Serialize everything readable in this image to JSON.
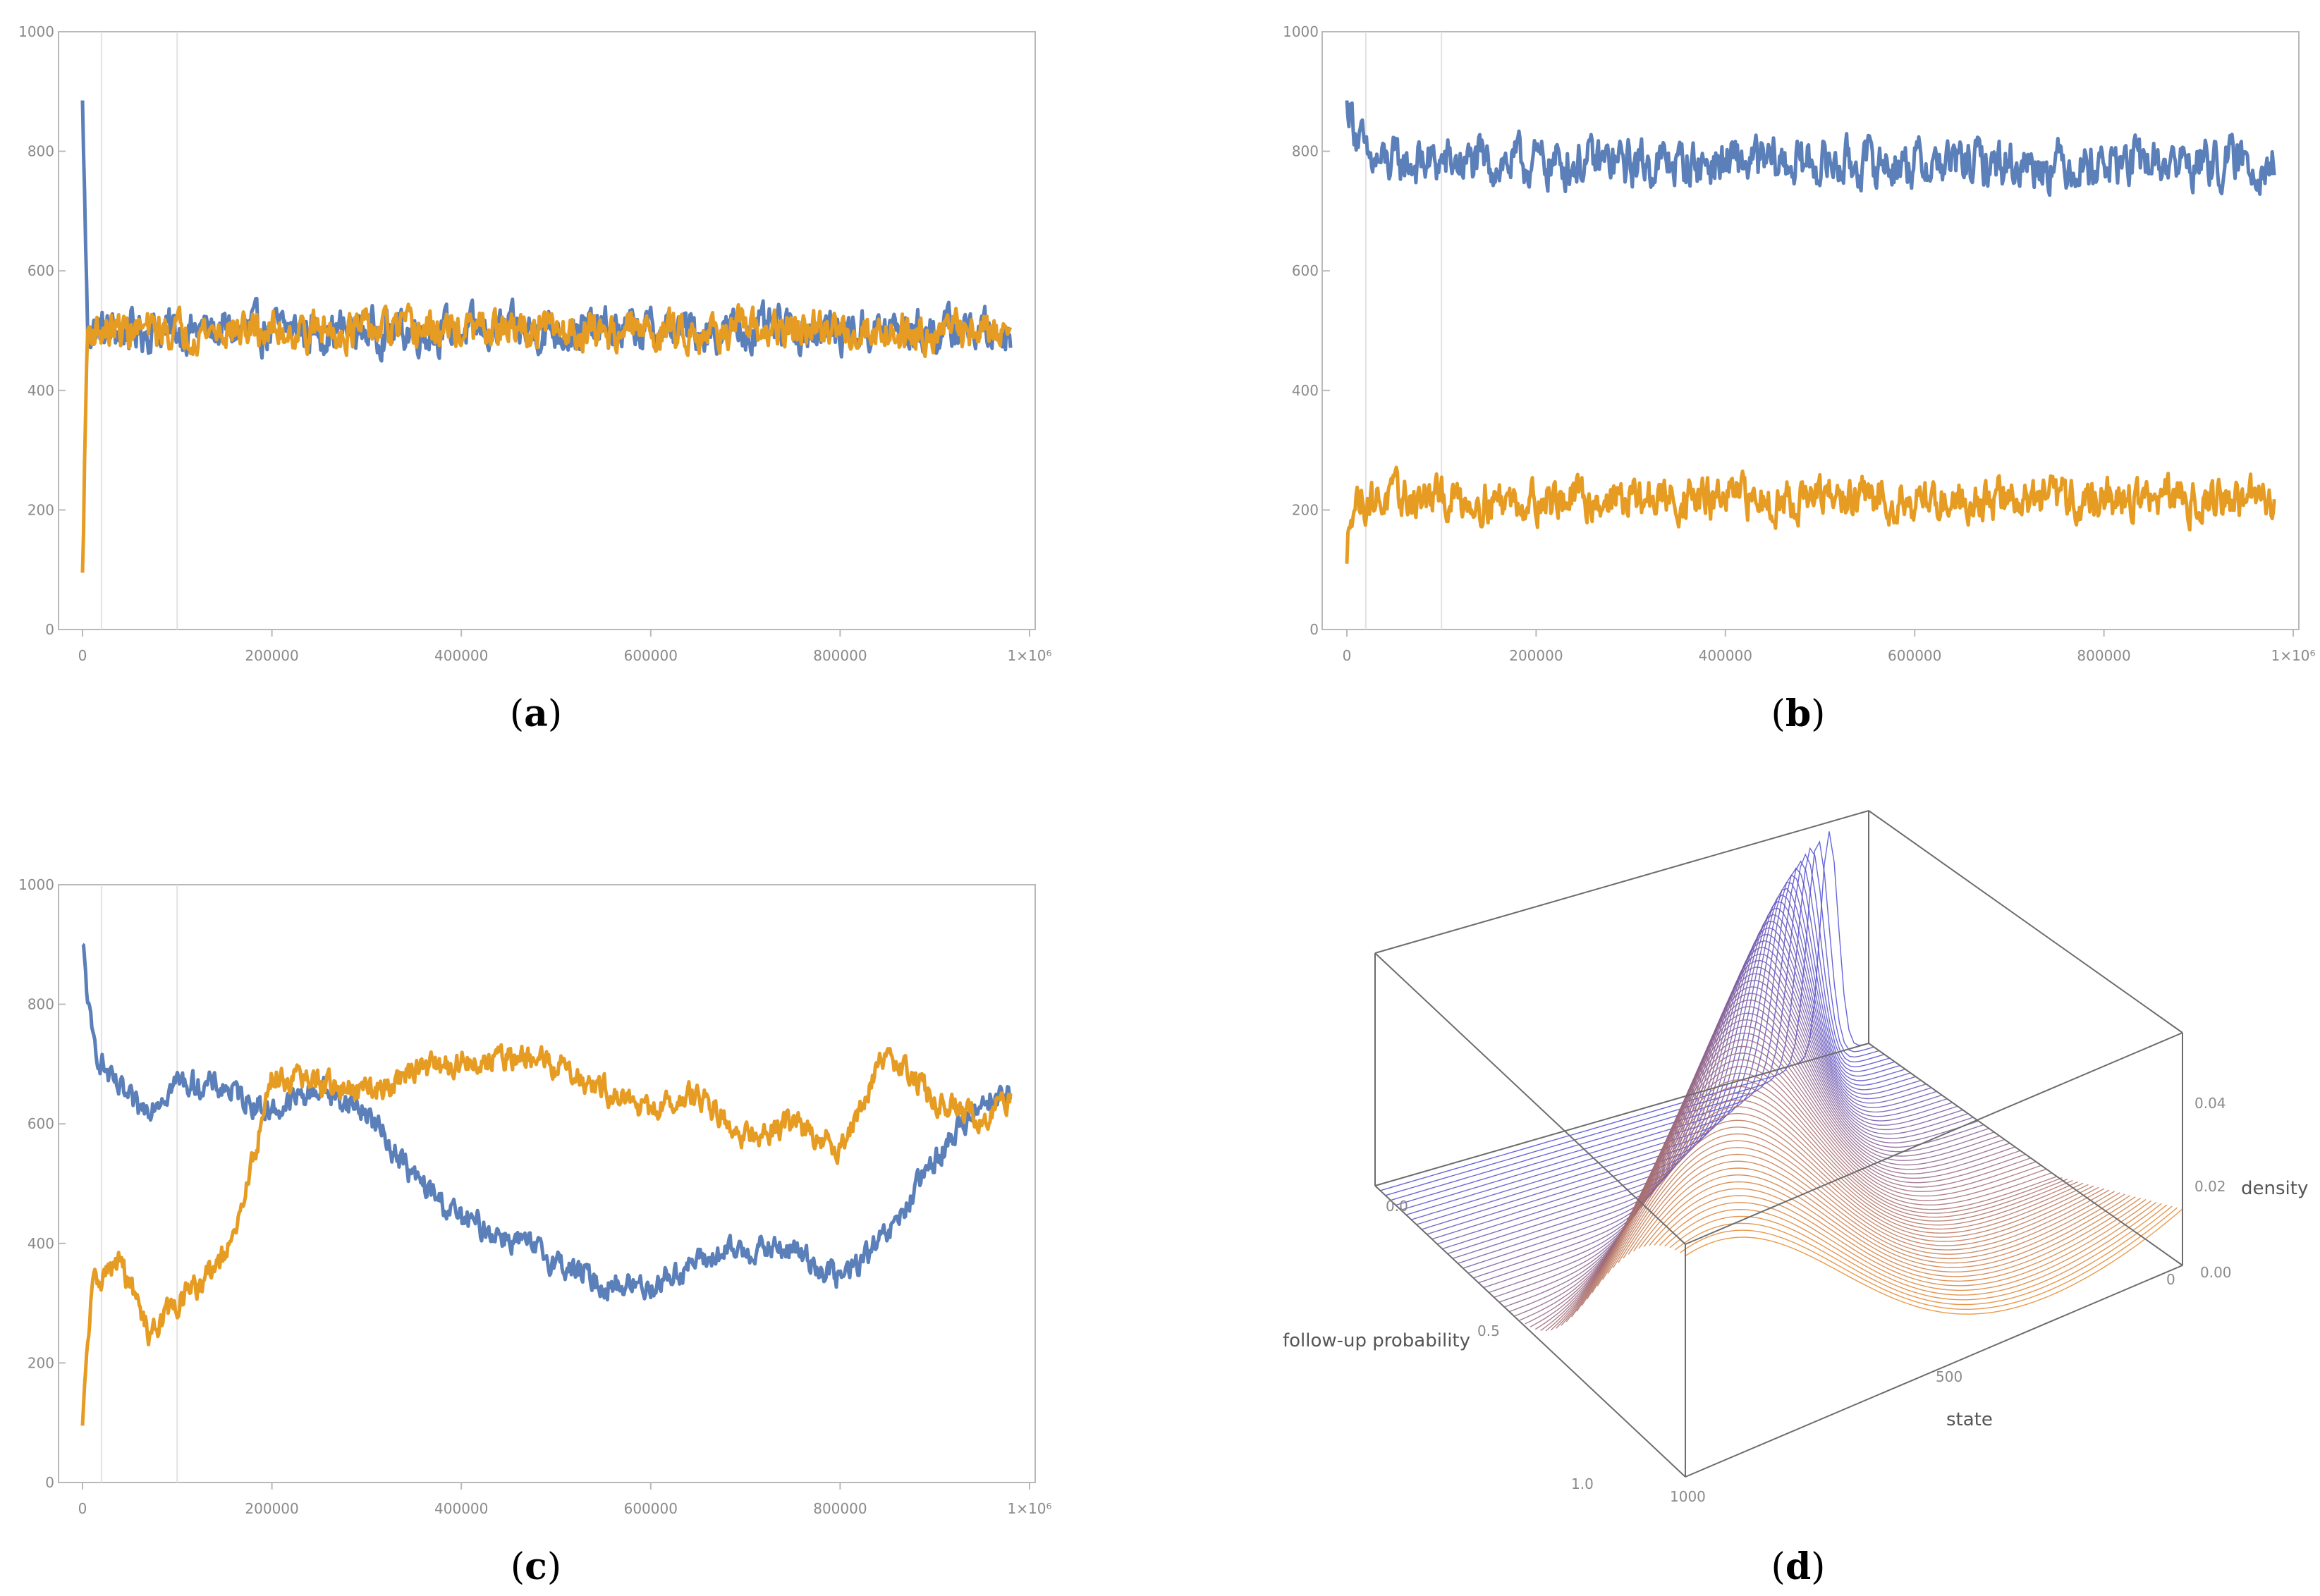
{
  "panels": [
    {
      "id": "a",
      "label_letter": "a",
      "chart_data": {
        "type": "line",
        "title": "",
        "xlabel": "",
        "ylabel": "",
        "xlim": [
          0,
          1000000
        ],
        "ylim": [
          0,
          1000
        ],
        "y_ticks": [
          "0",
          "200",
          "400",
          "600",
          "800",
          "1000"
        ],
        "x_ticks": [
          "0",
          "200000",
          "400000",
          "600000",
          "800000",
          "1×10⁶"
        ],
        "vertical_gridlines": [
          20000,
          100000
        ],
        "series": [
          {
            "name": "blue",
            "color": "#5b7fb8",
            "start": 885,
            "transition": [
              [
                0,
                885
              ],
              [
                5000,
                520
              ]
            ],
            "mean": 500,
            "amplitude": 40
          },
          {
            "name": "orange",
            "color": "#e69c22",
            "start": 95,
            "transition": [
              [
                0,
                95
              ],
              [
                5000,
                490
              ]
            ],
            "mean": 500,
            "amplitude": 35
          }
        ]
      }
    },
    {
      "id": "b",
      "label_letter": "b",
      "chart_data": {
        "type": "line",
        "title": "",
        "xlabel": "",
        "ylabel": "",
        "xlim": [
          0,
          1000000
        ],
        "ylim": [
          0,
          1000
        ],
        "y_ticks": [
          "0",
          "200",
          "400",
          "600",
          "800",
          "1000"
        ],
        "x_ticks": [
          "0",
          "200000",
          "400000",
          "600000",
          "800000",
          "1×10⁶"
        ],
        "vertical_gridlines": [
          20000,
          100000
        ],
        "series": [
          {
            "name": "blue",
            "color": "#5b7fb8",
            "start": 885,
            "transition": [
              [
                0,
                885
              ],
              [
                20000,
                790
              ]
            ],
            "mean": 780,
            "amplitude": 45
          },
          {
            "name": "orange",
            "color": "#e69c22",
            "start": 110,
            "transition": [
              [
                0,
                110
              ],
              [
                5000,
                230
              ]
            ],
            "mean": 218,
            "amplitude": 40
          }
        ]
      }
    },
    {
      "id": "c",
      "label_letter": "c",
      "chart_data": {
        "type": "line",
        "title": "",
        "xlabel": "",
        "ylabel": "",
        "xlim": [
          0,
          1000000
        ],
        "ylim": [
          0,
          1000
        ],
        "y_ticks": [
          "0",
          "200",
          "400",
          "600",
          "800",
          "1000"
        ],
        "x_ticks": [
          "0",
          "200000",
          "400000",
          "600000",
          "800000",
          "1×10⁶"
        ],
        "vertical_gridlines": [
          20000,
          100000
        ],
        "series": [
          {
            "name": "blue",
            "color": "#5b7fb8",
            "path": [
              [
                0,
                900
              ],
              [
                10000,
                740
              ],
              [
                30000,
                670
              ],
              [
                60000,
                620
              ],
              [
                100000,
                670
              ],
              [
                150000,
                660
              ],
              [
                200000,
                620
              ],
              [
                250000,
                660
              ],
              [
                300000,
                620
              ],
              [
                350000,
                510
              ],
              [
                400000,
                440
              ],
              [
                450000,
                410
              ],
              [
                500000,
                370
              ],
              [
                550000,
                330
              ],
              [
                600000,
                330
              ],
              [
                650000,
                370
              ],
              [
                700000,
                390
              ],
              [
                750000,
                390
              ],
              [
                800000,
                340
              ],
              [
                850000,
                410
              ],
              [
                900000,
                540
              ],
              [
                950000,
                640
              ],
              [
                980000,
                650
              ]
            ],
            "amplitude": 25
          },
          {
            "name": "orange",
            "color": "#e69c22",
            "path": [
              [
                0,
                95
              ],
              [
                10000,
                330
              ],
              [
                40000,
                370
              ],
              [
                70000,
                250
              ],
              [
                100000,
                300
              ],
              [
                130000,
                340
              ],
              [
                160000,
                400
              ],
              [
                200000,
                680
              ],
              [
                250000,
                670
              ],
              [
                300000,
                650
              ],
              [
                350000,
                690
              ],
              [
                400000,
                700
              ],
              [
                450000,
                710
              ],
              [
                500000,
                700
              ],
              [
                550000,
                660
              ],
              [
                600000,
                620
              ],
              [
                650000,
                650
              ],
              [
                700000,
                580
              ],
              [
                750000,
                600
              ],
              [
                800000,
                560
              ],
              [
                850000,
                720
              ],
              [
                900000,
                640
              ],
              [
                950000,
                610
              ],
              [
                980000,
                640
              ]
            ],
            "amplitude": 25
          }
        ]
      }
    },
    {
      "id": "d",
      "label_letter": "d",
      "chart_data": {
        "type": "surface3d",
        "axis_labels": {
          "follow_up_probability": "follow-up probability",
          "state": "state",
          "density": "density"
        },
        "prob_ticks": [
          "0.0",
          "0.5",
          "1.0"
        ],
        "state_ticks": [
          "0",
          "500",
          "1000"
        ],
        "density_ticks": [
          "0.00",
          "0.02",
          "0.04"
        ],
        "prob_range": [
          0,
          1
        ],
        "state_range": [
          0,
          1000
        ],
        "density_range": [
          0,
          0.05
        ],
        "description_series": "density curves over state for follow-up probability from 0 to 1",
        "color_low_prob": "#4a4ad8",
        "color_high_prob": "#e8872a"
      }
    }
  ]
}
